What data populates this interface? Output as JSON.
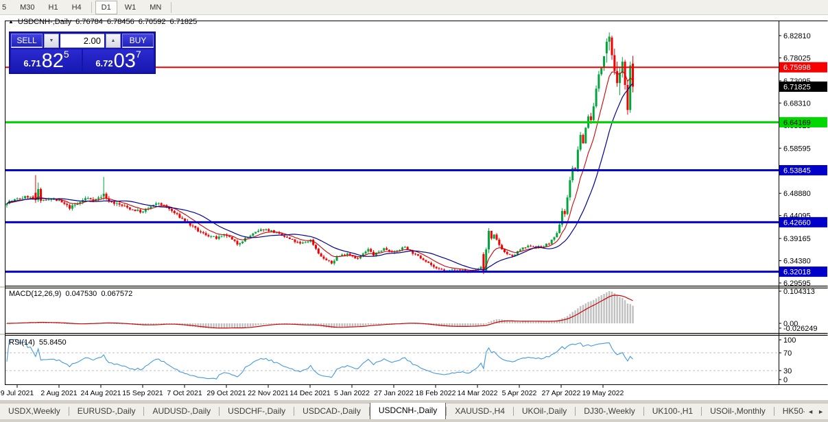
{
  "icons": {
    "title_marker": "▲",
    "spinner_down": "▼",
    "spinner_up": "▲",
    "tab_scroll_left": "◄",
    "tab_scroll_right": "►"
  },
  "toolbar": {
    "timeframes": [
      "5",
      "M30",
      "H1",
      "H4",
      "D1",
      "W1",
      "MN"
    ],
    "active": "D1"
  },
  "chart_title": {
    "symbol": "USDCNH-,Daily",
    "open": "6.76784",
    "high": "6.78456",
    "low": "6.70592",
    "close": "6.71825"
  },
  "trade_panel": {
    "sell_label": "SELL",
    "buy_label": "BUY",
    "volume": "2.00",
    "sell_price": {
      "prefix": "6.71",
      "big": "82",
      "pips": "5"
    },
    "buy_price": {
      "prefix": "6.72",
      "big": "03",
      "pips": "7"
    }
  },
  "price_axis": {
    "ticks": [
      "6.82810",
      "6.78025",
      "6.73095",
      "6.68310",
      "6.63525",
      "6.58595",
      "6.48880",
      "6.44095",
      "6.39165",
      "6.34380",
      "6.29595"
    ],
    "line_labels": [
      {
        "price": 6.75998,
        "label": "6.75998",
        "bg": "#f60000",
        "fg": "#ffffff"
      },
      {
        "price": 6.71825,
        "label": "6.71825",
        "bg": "#000000",
        "fg": "#ffffff"
      },
      {
        "price": 6.64169,
        "label": "6.64169",
        "bg": "#00d800",
        "fg": "#000000"
      },
      {
        "price": 6.53845,
        "label": "6.53845",
        "bg": "#0000c8",
        "fg": "#ffffff"
      },
      {
        "price": 6.4266,
        "label": "6.42660",
        "bg": "#0000c8",
        "fg": "#ffffff"
      },
      {
        "price": 6.32018,
        "label": "6.32018",
        "bg": "#0000c8",
        "fg": "#ffffff"
      }
    ]
  },
  "x_axis": {
    "labels": [
      "9 Jul 2021",
      "2 Aug 2021",
      "24 Aug 2021",
      "15 Sep 2021",
      "7 Oct 2021",
      "29 Oct 2021",
      "22 Nov 2021",
      "14 Dec 2021",
      "5 Jan 2022",
      "27 Jan 2022",
      "18 Feb 2022",
      "14 Mar 2022",
      "5 Apr 2022",
      "27 Apr 2022",
      "19 May 2022"
    ]
  },
  "indicators": {
    "macd": {
      "label": "MACD(12,26,9)",
      "value_main": "0.047530",
      "value_signal": "0.067572",
      "axis": [
        "0.104313",
        "0.00",
        "-0.026249"
      ]
    },
    "rsi": {
      "label": "RSI(14)",
      "value": "55.8450",
      "axis": [
        "100",
        "70",
        "30",
        "0"
      ]
    }
  },
  "tabs": {
    "items": [
      "USDX,Weekly",
      "EURUSD-,Daily",
      "AUDUSD-,Daily",
      "USDCHF-,Daily",
      "USDCAD-,Daily",
      "USDCNH-,Daily",
      "XAUUSD-,H4",
      "UKOil-,Daily",
      "DJ30-,Weekly",
      "UK100-,H1",
      "USOil-,Monthly",
      "HK50-,"
    ],
    "active_index": 5
  },
  "colors": {
    "bull": "#00a53c",
    "bear": "#f40000",
    "ma_fast": "#cf0000",
    "ma_slow": "#000096",
    "hline_red": "#f60000",
    "hline_green": "#00d800",
    "hline_blue": "#0000d0",
    "macd_hist": "#bfbfbf",
    "macd_signal": "#cf0000",
    "rsi_line": "#4399e1",
    "panel_blue": "#1414ad"
  },
  "chart_data": {
    "type": "candlestick",
    "symbol": "USDCNH-",
    "timeframe": "Daily",
    "bars": 240,
    "last_bar": {
      "open": 6.76784,
      "high": 6.78456,
      "low": 6.70592,
      "close": 6.71825
    },
    "current_price": 6.71825,
    "price_range_visible": [
      6.29595,
      6.8281
    ],
    "hlines": [
      {
        "price": 6.75998,
        "color": "#f60000",
        "width": 2
      },
      {
        "price": 6.64169,
        "color": "#00d800",
        "width": 3
      },
      {
        "price": 6.53845,
        "color": "#0000d0",
        "width": 3
      },
      {
        "price": 6.4266,
        "color": "#0000d0",
        "width": 3
      },
      {
        "price": 6.32018,
        "color": "#0000d0",
        "width": 3
      }
    ],
    "ma": [
      {
        "type": "ema",
        "period": 9,
        "color": "#cf0000"
      },
      {
        "type": "sma",
        "period": 20,
        "color": "#000096"
      }
    ],
    "macd": {
      "fast": 12,
      "slow": 26,
      "signal": 9,
      "last_main": 0.04753,
      "last_signal": 0.067572,
      "axis_max": 0.104313,
      "axis_min": -0.026249
    },
    "rsi": {
      "period": 14,
      "levels": [
        70,
        30
      ],
      "last_value": 55.845
    },
    "anchors": [
      [
        0,
        6.47
      ],
      [
        4,
        6.476
      ],
      [
        8,
        6.482
      ],
      [
        10,
        6.478
      ],
      [
        13,
        6.47
      ],
      [
        16,
        6.478
      ],
      [
        20,
        6.472
      ],
      [
        24,
        6.458
      ],
      [
        27,
        6.466
      ],
      [
        30,
        6.478
      ],
      [
        34,
        6.476
      ],
      [
        36,
        6.482
      ],
      [
        40,
        6.47
      ],
      [
        44,
        6.462
      ],
      [
        48,
        6.454
      ],
      [
        52,
        6.448
      ],
      [
        55,
        6.46
      ],
      [
        58,
        6.468
      ],
      [
        62,
        6.455
      ],
      [
        65,
        6.442
      ],
      [
        68,
        6.43
      ],
      [
        71,
        6.416
      ],
      [
        74,
        6.404
      ],
      [
        77,
        6.398
      ],
      [
        80,
        6.392
      ],
      [
        84,
        6.398
      ],
      [
        86,
        6.388
      ],
      [
        88,
        6.38
      ],
      [
        92,
        6.395
      ],
      [
        95,
        6.404
      ],
      [
        98,
        6.412
      ],
      [
        101,
        6.408
      ],
      [
        104,
        6.4
      ],
      [
        108,
        6.39
      ],
      [
        112,
        6.38
      ],
      [
        116,
        6.388
      ],
      [
        120,
        6.352
      ],
      [
        124,
        6.338
      ],
      [
        126,
        6.352
      ],
      [
        130,
        6.36
      ],
      [
        134,
        6.348
      ],
      [
        138,
        6.368
      ],
      [
        140,
        6.356
      ],
      [
        144,
        6.37
      ],
      [
        148,
        6.362
      ],
      [
        152,
        6.374
      ],
      [
        156,
        6.356
      ],
      [
        160,
        6.344
      ],
      [
        164,
        6.326
      ],
      [
        168,
        6.322
      ],
      [
        172,
        6.326
      ],
      [
        176,
        6.32
      ],
      [
        179,
        6.324
      ],
      [
        181,
        6.33
      ],
      [
        185,
        6.39
      ],
      [
        186,
        6.398
      ],
      [
        188,
        6.378
      ],
      [
        190,
        6.362
      ],
      [
        193,
        6.352
      ],
      [
        196,
        6.368
      ],
      [
        200,
        6.376
      ],
      [
        204,
        6.372
      ],
      [
        207,
        6.382
      ],
      [
        209,
        6.392
      ],
      [
        210,
        6.4
      ],
      [
        211,
        6.424
      ],
      [
        212,
        6.452
      ],
      [
        213,
        6.445
      ],
      [
        214,
        6.478
      ],
      [
        215,
        6.52
      ],
      [
        216,
        6.545
      ],
      [
        217,
        6.538
      ],
      [
        218,
        6.585
      ],
      [
        219,
        6.61
      ],
      [
        220,
        6.598
      ],
      [
        221,
        6.63
      ],
      [
        222,
        6.656
      ],
      [
        223,
        6.645
      ],
      [
        224,
        6.68
      ],
      [
        225,
        6.712
      ],
      [
        226,
        6.742
      ],
      [
        227,
        6.76
      ],
      [
        228,
        6.788
      ]
    ],
    "overrides": [
      {
        "i": 11,
        "o": 6.49,
        "h": 6.528,
        "l": 6.468,
        "c": 6.474
      },
      {
        "i": 12,
        "o": 6.474,
        "h": 6.512,
        "l": 6.47,
        "c": 6.498
      },
      {
        "i": 37,
        "o": 6.482,
        "h": 6.524,
        "l": 6.474,
        "c": 6.488
      },
      {
        "i": 182,
        "o": 6.358,
        "h": 6.362,
        "l": 6.315,
        "c": 6.32
      },
      {
        "i": 183,
        "o": 6.32,
        "h": 6.372,
        "l": 6.318,
        "c": 6.368
      },
      {
        "i": 184,
        "o": 6.368,
        "h": 6.414,
        "l": 6.36,
        "c": 6.408
      },
      {
        "i": 229,
        "o": 6.79,
        "h": 6.822,
        "l": 6.77,
        "c": 6.815
      },
      {
        "i": 230,
        "o": 6.815,
        "h": 6.835,
        "l": 6.796,
        "c": 6.826
      },
      {
        "i": 231,
        "o": 6.824,
        "h": 6.828,
        "l": 6.776,
        "c": 6.786
      },
      {
        "i": 232,
        "o": 6.786,
        "h": 6.8,
        "l": 6.744,
        "c": 6.752
      },
      {
        "i": 233,
        "o": 6.752,
        "h": 6.772,
        "l": 6.718,
        "c": 6.726
      },
      {
        "i": 234,
        "o": 6.726,
        "h": 6.76,
        "l": 6.7,
        "c": 6.748
      },
      {
        "i": 235,
        "o": 6.748,
        "h": 6.782,
        "l": 6.738,
        "c": 6.772
      },
      {
        "i": 236,
        "o": 6.772,
        "h": 6.776,
        "l": 6.712,
        "c": 6.722
      },
      {
        "i": 237,
        "o": 6.722,
        "h": 6.73,
        "l": 6.658,
        "c": 6.668
      },
      {
        "i": 238,
        "o": 6.668,
        "h": 6.772,
        "l": 6.662,
        "c": 6.764
      },
      {
        "i": 239,
        "o": 6.76784,
        "h": 6.78456,
        "l": 6.70592,
        "c": 6.71825
      }
    ],
    "vol_zones": [
      [
        0,
        0.01
      ],
      [
        56,
        0.009
      ],
      [
        100,
        0.0075
      ],
      [
        164,
        0.006
      ],
      [
        185,
        0.008
      ],
      [
        210,
        0.016
      ]
    ]
  }
}
